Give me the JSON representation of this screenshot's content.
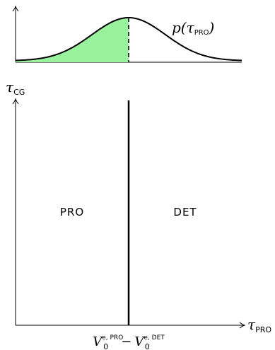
{
  "curve": {
    "label_fn": "p(",
    "label_var": "τ",
    "label_sub": "PRO",
    "label_close": ")",
    "fill_color": "#99f39e",
    "line_color": "#000000"
  },
  "axes": {
    "y_var": "τ",
    "y_sub": "CG",
    "x_var": "τ",
    "x_sub": "PRO"
  },
  "regions": {
    "left_label": "PRO",
    "right_label": "DET"
  },
  "threshold": {
    "term1_base": "V",
    "term1_sub": "0",
    "term1_sup": "e, PRO",
    "minus": "−",
    "term2_base": "V",
    "term2_sub": "0",
    "term2_sup": "e, DET"
  }
}
